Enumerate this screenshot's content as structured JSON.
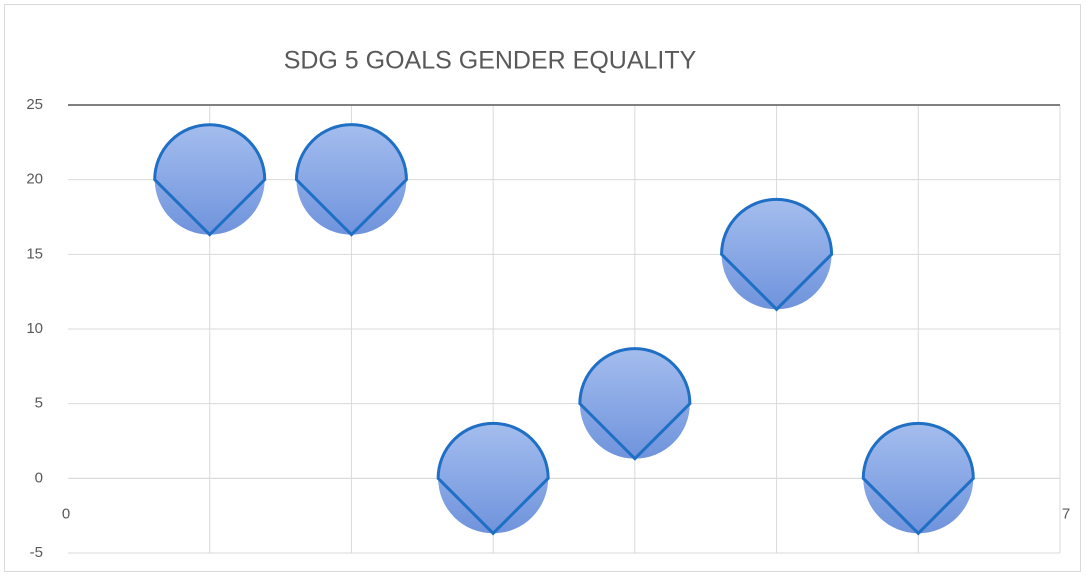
{
  "chart_data": {
    "type": "bubble",
    "title": "SDG 5 GOALS GENDER EQUALITY",
    "x": [
      1,
      2,
      3,
      4,
      5,
      6
    ],
    "values": [
      20,
      20,
      0,
      5,
      15,
      0
    ],
    "sizes": [
      1,
      1,
      1,
      1,
      1,
      1
    ],
    "color": "#7c9fe0",
    "edge_color": "#1f6fc4",
    "xlim": [
      0,
      7
    ],
    "xticks": [
      0,
      7
    ],
    "xgrid": [
      1,
      2,
      3,
      4,
      5,
      6
    ],
    "ylim": [
      -5,
      25
    ],
    "yticks": [
      -5,
      0,
      5,
      10,
      15,
      20,
      25
    ],
    "grid": true
  }
}
